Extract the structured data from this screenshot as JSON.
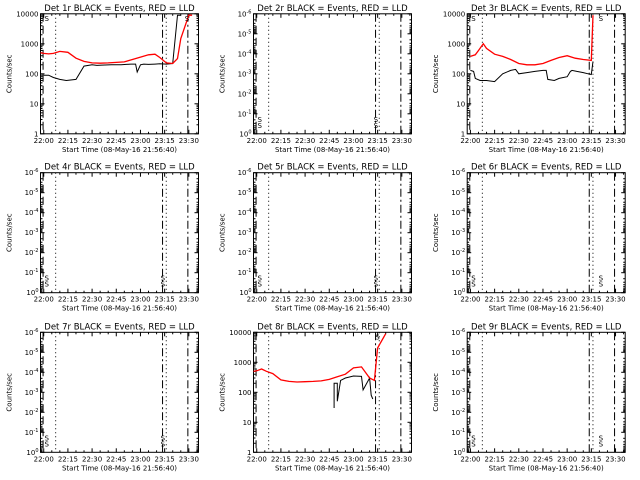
{
  "chart_data": [
    {
      "type": "line",
      "title": "Det 1r BLACK = Events, RED = LLD",
      "xlabel": "Start Time (08-May-16 21:56:40)",
      "ylabel": "Counts/sec",
      "yscale": "log",
      "xlim": [
        "21:58",
        "23:36"
      ],
      "ylim": [
        1,
        10000
      ],
      "xticks": [
        "22:00",
        "22:15",
        "22:30",
        "22:45",
        "23:00",
        "23:15",
        "23:30"
      ],
      "yticks": [
        "1",
        "10",
        "100",
        "1000",
        "10000"
      ],
      "series": [
        {
          "color": "#000000",
          "x": [
            "22:00",
            "22:03",
            "22:06",
            "22:10",
            "22:14",
            "22:20",
            "22:25",
            "22:30",
            "22:33",
            "22:36",
            "22:42",
            "22:48",
            "22:54",
            "22:57",
            "22:58",
            "23:00",
            "23:02",
            "23:05",
            "23:09",
            "23:12",
            "23:16",
            "23:20",
            "23:23",
            "23:25"
          ],
          "values": [
            90,
            90,
            75,
            65,
            60,
            65,
            180,
            200,
            190,
            195,
            200,
            200,
            210,
            210,
            115,
            200,
            210,
            205,
            210,
            215,
            210,
            220,
            9000,
            9000
          ]
        },
        {
          "color": "#ff0000",
          "x": [
            "21:58",
            "22:00",
            "22:03",
            "22:06",
            "22:10",
            "22:15",
            "22:20",
            "22:25",
            "22:30",
            "22:35",
            "22:40",
            "22:45",
            "22:50",
            "22:55",
            "23:00",
            "23:05",
            "23:09",
            "23:12",
            "23:16",
            "23:20",
            "23:23",
            "23:25",
            "23:30",
            "23:32"
          ],
          "values": [
            500,
            480,
            460,
            480,
            560,
            520,
            330,
            260,
            230,
            225,
            230,
            240,
            250,
            300,
            360,
            430,
            450,
            350,
            230,
            220,
            320,
            1500,
            9000,
            9000
          ]
        }
      ],
      "markers": [
        {
          "x": "22:00",
          "label": "S"
        },
        {
          "x": "23:27",
          "label": "S"
        }
      ]
    },
    {
      "type": "line",
      "title": "Det 2r BLACK = Events, RED = LLD",
      "xlabel": "Start Time (08-May-16 21:56:40)",
      "ylabel": "Counts/sec",
      "yscale": "log",
      "xlim": [
        "21:58",
        "23:36"
      ],
      "ylim": [
        1,
        1e-06
      ],
      "xticks": [
        "22:00",
        "22:15",
        "22:30",
        "22:45",
        "23:00",
        "23:15",
        "23:30"
      ],
      "yticks": [
        "10⁰",
        "10⁻¹",
        "10⁻²",
        "10⁻³",
        "10⁻⁴",
        "10⁻⁵",
        "10⁻⁶"
      ],
      "series": [],
      "markers": [
        {
          "x": "22:00",
          "label": "S"
        },
        {
          "x": "23:12",
          "label": "S"
        }
      ]
    },
    {
      "type": "line",
      "title": "Det 3r BLACK = Events, RED = LLD",
      "xlabel": "Start Time (08-May-16 21:56:40)",
      "ylabel": "Counts/sec",
      "yscale": "log",
      "xlim": [
        "21:58",
        "23:36"
      ],
      "ylim": [
        1,
        10000
      ],
      "xticks": [
        "22:00",
        "22:15",
        "22:30",
        "22:45",
        "23:00",
        "23:15",
        "23:30"
      ],
      "yticks": [
        "1",
        "10",
        "100",
        "1000",
        "10000"
      ],
      "series": [
        {
          "color": "#000000",
          "x": [
            "22:00",
            "22:02",
            "22:03",
            "22:06",
            "22:10",
            "22:15",
            "22:20",
            "22:25",
            "22:28",
            "22:30",
            "22:35",
            "22:40",
            "22:45",
            "22:47",
            "22:48",
            "22:52",
            "22:55",
            "23:00",
            "23:02",
            "23:03",
            "23:06",
            "23:10",
            "23:13",
            "23:15",
            "23:16"
          ],
          "values": [
            130,
            120,
            70,
            60,
            60,
            55,
            100,
            130,
            140,
            100,
            110,
            120,
            130,
            130,
            65,
            60,
            70,
            80,
            120,
            130,
            120,
            110,
            100,
            95,
            260
          ]
        },
        {
          "color": "#ff0000",
          "x": [
            "22:00",
            "22:03",
            "22:05",
            "22:08",
            "22:10",
            "22:15",
            "22:20",
            "22:25",
            "22:30",
            "22:35",
            "22:40",
            "22:45",
            "22:50",
            "22:55",
            "23:00",
            "23:05",
            "23:10",
            "23:15",
            "23:16"
          ],
          "values": [
            380,
            430,
            600,
            1000,
            700,
            450,
            380,
            300,
            220,
            200,
            200,
            220,
            280,
            350,
            400,
            330,
            300,
            280,
            9000
          ]
        }
      ],
      "markers": [
        {
          "x": "22:00",
          "label": "S"
        },
        {
          "x": "23:19",
          "label": "S"
        }
      ]
    },
    {
      "type": "line",
      "title": "Det 4r BLACK = Events, RED = LLD",
      "xlabel": "Start Time (08-May-16 21:56:40)",
      "ylabel": "Counts/sec",
      "yscale": "log",
      "xlim": [
        "21:58",
        "23:36"
      ],
      "ylim": [
        1,
        1e-06
      ],
      "xticks": [
        "22:00",
        "22:15",
        "22:30",
        "22:45",
        "23:00",
        "23:15",
        "23:30"
      ],
      "yticks": [
        "10⁰",
        "10⁻¹",
        "10⁻²",
        "10⁻³",
        "10⁻⁴",
        "10⁻⁵",
        "10⁻⁶"
      ],
      "series": [],
      "markers": [
        {
          "x": "22:00",
          "label": "S"
        },
        {
          "x": "23:12",
          "label": "S"
        }
      ]
    },
    {
      "type": "line",
      "title": "Det 5r BLACK = Events, RED = LLD",
      "xlabel": "Start Time (08-May-16 21:56:40)",
      "ylabel": "Counts/sec",
      "yscale": "log",
      "xlim": [
        "21:58",
        "23:36"
      ],
      "ylim": [
        1,
        1e-06
      ],
      "xticks": [
        "22:00",
        "22:15",
        "22:30",
        "22:45",
        "23:00",
        "23:15",
        "23:30"
      ],
      "yticks": [
        "10⁰",
        "10⁻¹",
        "10⁻²",
        "10⁻³",
        "10⁻⁴",
        "10⁻⁵",
        "10⁻⁶"
      ],
      "series": [],
      "markers": [
        {
          "x": "22:00",
          "label": "S"
        },
        {
          "x": "23:12",
          "label": "S"
        }
      ]
    },
    {
      "type": "line",
      "title": "Det 6r BLACK = Events, RED = LLD",
      "xlabel": "Start Time (08-May-16 21:56:40)",
      "ylabel": "Counts/sec",
      "yscale": "log",
      "xlim": [
        "21:58",
        "23:36"
      ],
      "ylim": [
        1,
        1e-06
      ],
      "xticks": [
        "22:00",
        "22:15",
        "22:30",
        "22:45",
        "23:00",
        "23:15",
        "23:30"
      ],
      "yticks": [
        "10⁰",
        "10⁻¹",
        "10⁻²",
        "10⁻³",
        "10⁻⁴",
        "10⁻⁵",
        "10⁻⁶"
      ],
      "series": [],
      "markers": [
        {
          "x": "22:00",
          "label": "S"
        },
        {
          "x": "23:19",
          "label": "S"
        }
      ]
    },
    {
      "type": "line",
      "title": "Det 7r BLACK = Events, RED = LLD",
      "xlabel": "Start Time (08-May-16 21:56:40)",
      "ylabel": "Counts/sec",
      "yscale": "log",
      "xlim": [
        "21:58",
        "23:36"
      ],
      "ylim": [
        1,
        1e-06
      ],
      "xticks": [
        "22:00",
        "22:15",
        "22:30",
        "22:45",
        "23:00",
        "23:15",
        "23:30"
      ],
      "yticks": [
        "10⁰",
        "10⁻¹",
        "10⁻²",
        "10⁻³",
        "10⁻⁴",
        "10⁻⁵",
        "10⁻⁶"
      ],
      "series": [],
      "markers": [
        {
          "x": "22:00",
          "label": "S"
        },
        {
          "x": "23:12",
          "label": "S"
        }
      ]
    },
    {
      "type": "line",
      "title": "Det 8r BLACK = Events, RED = LLD",
      "xlabel": "Start Time (08-May-16 21:56:40)",
      "ylabel": "Counts/sec",
      "yscale": "log",
      "xlim": [
        "21:58",
        "23:36"
      ],
      "ylim": [
        1,
        10000
      ],
      "xticks": [
        "22:00",
        "22:15",
        "22:30",
        "22:45",
        "23:00",
        "23:15",
        "23:30"
      ],
      "yticks": [
        "1",
        "10",
        "100",
        "1000",
        "10000"
      ],
      "series": [
        {
          "color": "#000000",
          "x": [
            "22:48",
            "22:48",
            "22:50",
            "22:50",
            "22:52",
            "22:55",
            "23:00",
            "23:05",
            "23:06",
            "23:10",
            "23:11",
            "23:12"
          ],
          "values": [
            30,
            200,
            200,
            50,
            250,
            300,
            350,
            340,
            120,
            300,
            80,
            60
          ]
        },
        {
          "color": "#ff0000",
          "x": [
            "21:58",
            "22:00",
            "22:03",
            "22:06",
            "22:10",
            "22:15",
            "22:20",
            "22:25",
            "22:30",
            "22:35",
            "22:40",
            "22:45",
            "22:50",
            "22:55",
            "23:00",
            "23:05",
            "23:08",
            "23:10",
            "23:13",
            "23:15",
            "23:20"
          ],
          "values": [
            500,
            520,
            600,
            500,
            420,
            260,
            230,
            220,
            225,
            230,
            240,
            270,
            330,
            400,
            650,
            700,
            420,
            300,
            250,
            3000,
            9000
          ]
        }
      ],
      "markers": [
        {
          "x": "23:13",
          "label": "S"
        }
      ]
    },
    {
      "type": "line",
      "title": "Det 9r BLACK = Events, RED = LLD",
      "xlabel": "Start Time (08-May-16 21:56:40)",
      "ylabel": "Counts/sec",
      "yscale": "log",
      "xlim": [
        "21:58",
        "23:36"
      ],
      "ylim": [
        1,
        1e-06
      ],
      "xticks": [
        "22:00",
        "22:15",
        "22:30",
        "22:45",
        "23:00",
        "23:15",
        "23:30"
      ],
      "yticks": [
        "10⁰",
        "10⁻¹",
        "10⁻²",
        "10⁻³",
        "10⁻⁴",
        "10⁻⁵",
        "10⁻⁶"
      ],
      "series": [],
      "markers": [
        {
          "x": "22:00",
          "label": "S"
        },
        {
          "x": "23:19",
          "label": "S"
        }
      ]
    }
  ]
}
